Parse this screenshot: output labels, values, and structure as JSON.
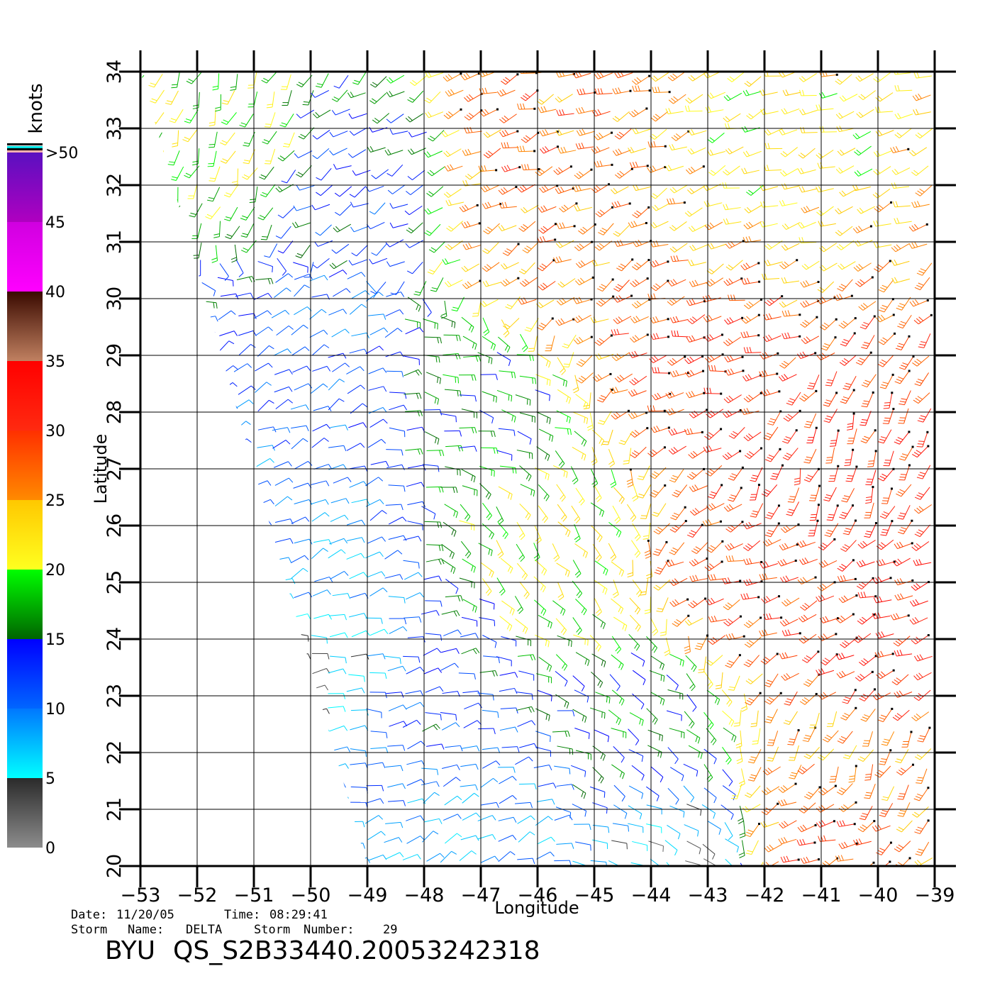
{
  "chart_data": {
    "type": "scatter",
    "subtype": "wind-barb-field",
    "xlabel": "Longitude",
    "ylabel": "Latitude",
    "xlim": [
      -53,
      -39
    ],
    "ylim": [
      20,
      34
    ],
    "x_ticks": [
      -53,
      -52,
      -51,
      -50,
      -49,
      -48,
      -47,
      -46,
      -45,
      -44,
      -43,
      -42,
      -41,
      -40,
      -39
    ],
    "x_tick_labels": [
      "−53",
      "−52",
      "−51",
      "−50",
      "−49",
      "−48",
      "−47",
      "−46",
      "−45",
      "−44",
      "−43",
      "−42",
      "−41",
      "−40",
      "−39"
    ],
    "y_ticks": [
      20,
      21,
      22,
      23,
      24,
      25,
      26,
      27,
      28,
      29,
      30,
      31,
      32,
      33,
      34
    ],
    "y_tick_labels": [
      "20",
      "21",
      "22",
      "23",
      "24",
      "25",
      "26",
      "27",
      "28",
      "29",
      "30",
      "31",
      "32",
      "33",
      "34"
    ],
    "grid": true,
    "colorbar": {
      "title": "knots",
      "ticks": [
        0,
        5,
        10,
        15,
        20,
        25,
        30,
        35,
        40,
        45,
        ">50"
      ],
      "segments": [
        {
          "from": 0,
          "to": 5,
          "colors": [
            "#8c8c8c",
            "#2a2a2a"
          ]
        },
        {
          "from": 5,
          "to": 10,
          "colors": [
            "#00ffff",
            "#0077ff"
          ]
        },
        {
          "from": 10,
          "to": 15,
          "colors": [
            "#0066ff",
            "#0000ff"
          ]
        },
        {
          "from": 15,
          "to": 20,
          "colors": [
            "#006400",
            "#00ff00"
          ]
        },
        {
          "from": 20,
          "to": 25,
          "colors": [
            "#ffff20",
            "#ffc800"
          ]
        },
        {
          "from": 25,
          "to": 30,
          "colors": [
            "#ff8a00",
            "#ff3000"
          ]
        },
        {
          "from": 30,
          "to": 35,
          "colors": [
            "#ff2a10",
            "#ff0000"
          ]
        },
        {
          "from": 35,
          "to": 40,
          "colors": [
            "#c08060",
            "#3a0a00"
          ]
        },
        {
          "from": 40,
          "to": 45,
          "colors": [
            "#ff00ff",
            "#d000e0"
          ]
        },
        {
          "from": 45,
          "to": 50,
          "colors": [
            "#b000c0",
            "#5a10c0"
          ]
        }
      ]
    },
    "swath_lon_lat": [
      [
        -53,
        34
      ],
      [
        -39,
        34
      ],
      [
        -39,
        20
      ],
      [
        -49,
        20
      ]
    ],
    "wind_regions": [
      {
        "lon": -51.5,
        "lat": 33,
        "speed_kt": 20,
        "dir_deg": 200
      },
      {
        "lon": -49,
        "lat": 32,
        "speed_kt": 12,
        "dir_deg": 240
      },
      {
        "lon": -46,
        "lat": 32.5,
        "speed_kt": 28,
        "dir_deg": 250
      },
      {
        "lon": -42,
        "lat": 32.5,
        "speed_kt": 22,
        "dir_deg": 250
      },
      {
        "lon": -45.5,
        "lat": 31,
        "speed_kt": 27,
        "dir_deg": 240
      },
      {
        "lon": -50,
        "lat": 29,
        "speed_kt": 11,
        "dir_deg": 60
      },
      {
        "lon": -47,
        "lat": 28,
        "speed_kt": 16,
        "dir_deg": 100
      },
      {
        "lon": -43,
        "lat": 28.8,
        "speed_kt": 30,
        "dir_deg": 255
      },
      {
        "lon": -41,
        "lat": 27,
        "speed_kt": 31,
        "dir_deg": 200
      },
      {
        "lon": -50,
        "lat": 25.5,
        "speed_kt": 9,
        "dir_deg": 60
      },
      {
        "lon": -46,
        "lat": 26,
        "speed_kt": 21,
        "dir_deg": 140
      },
      {
        "lon": -42,
        "lat": 25,
        "speed_kt": 29,
        "dir_deg": 250
      },
      {
        "lon": -40,
        "lat": 24,
        "speed_kt": 32,
        "dir_deg": 250
      },
      {
        "lon": -48,
        "lat": 22.5,
        "speed_kt": 13,
        "dir_deg": 80
      },
      {
        "lon": -44,
        "lat": 22.5,
        "speed_kt": 16,
        "dir_deg": 120
      },
      {
        "lon": -40.5,
        "lat": 22,
        "speed_kt": 25,
        "dir_deg": 200
      },
      {
        "lon": -47.5,
        "lat": 20.7,
        "speed_kt": 8,
        "dir_deg": 60
      },
      {
        "lon": -41,
        "lat": 20.8,
        "speed_kt": 30,
        "dir_deg": 250
      },
      {
        "lon": -50.2,
        "lat": 23.3,
        "speed_kt": 4,
        "dir_deg": 90
      },
      {
        "lon": -43.5,
        "lat": 20.3,
        "speed_kt": 4,
        "dir_deg": 120
      }
    ]
  },
  "footer": {
    "date_label": "Date:",
    "date_value": "11/20/05",
    "time_label": "Time:",
    "time_value": "08:29:41",
    "storm_name_label": "Storm",
    "storm_name_label2": "Name:",
    "storm_name_value": "DELTA",
    "storm_number_label": "Storm",
    "storm_number_label2": "Number:",
    "storm_number_value": "29",
    "product_prefix": "BYU",
    "product_id": "QS_S2B33440.20053242318"
  }
}
